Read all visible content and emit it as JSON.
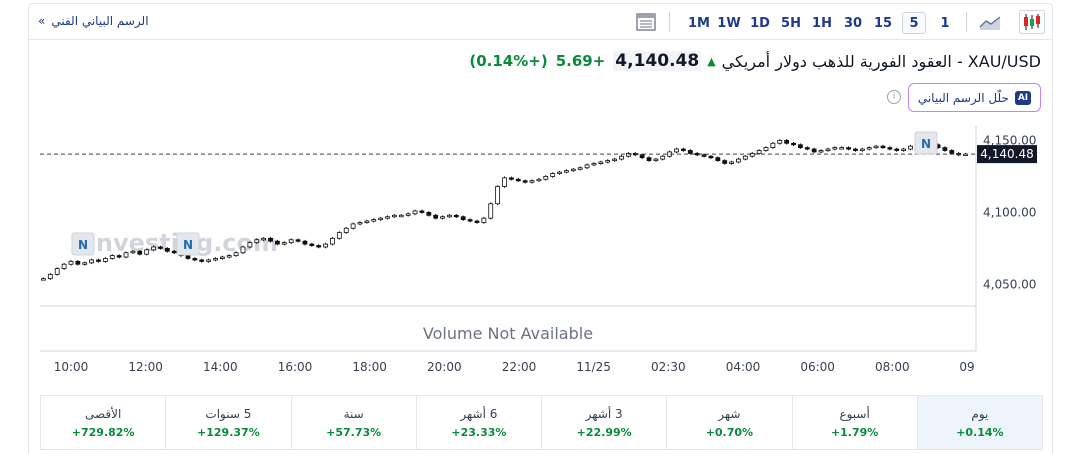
{
  "toolbar": {
    "technical_chart_link": "الرسم البياني الفني",
    "timeframes": [
      "1M",
      "1W",
      "1D",
      "5H",
      "1H",
      "30",
      "15",
      "5",
      "1"
    ],
    "active_timeframe": "5"
  },
  "instrument": {
    "title": "XAU/USD - العقود الفورية للذهب دولار أمريكي",
    "price": "4,140.48",
    "change": "+5.69",
    "change_pct": "(+0.14%)",
    "direction": "up"
  },
  "ai_button": {
    "label": "حلّل الرسم البياني",
    "badge": "AI"
  },
  "chart": {
    "watermark": "Investing.com",
    "volume_note": "Volume Not Available",
    "news_marker": "N",
    "current_price_label": "4,140.48"
  },
  "chart_data": {
    "type": "candlestick",
    "y_ticks": [
      "4,150.00",
      "4,100.00",
      "4,050.00"
    ],
    "y_tick_values": [
      4150,
      4100,
      4050
    ],
    "ylim": [
      4035,
      4160
    ],
    "x_ticks": [
      "10:00",
      "12:00",
      "14:00",
      "16:00",
      "18:00",
      "20:00",
      "22:00",
      "11/25",
      "02:30",
      "04:00",
      "06:00",
      "08:00",
      "09"
    ],
    "current_price": 4140.48,
    "close_series": [
      4054,
      4057,
      4061,
      4064,
      4066,
      4064,
      4065,
      4067,
      4066,
      4068,
      4070,
      4069,
      4072,
      4073,
      4071,
      4074,
      4076,
      4075,
      4073,
      4072,
      4070,
      4068,
      4067,
      4066,
      4067,
      4068,
      4069,
      4070,
      4072,
      4076,
      4079,
      4081,
      4082,
      4080,
      4078,
      4079,
      4081,
      4080,
      4078,
      4077,
      4076,
      4078,
      4082,
      4086,
      4089,
      4092,
      4093,
      4094,
      4095,
      4096,
      4097,
      4098,
      4098,
      4099,
      4101,
      4100,
      4098,
      4096,
      4097,
      4098,
      4097,
      4095,
      4094,
      4093,
      4096,
      4106,
      4118,
      4124,
      4123,
      4122,
      4121,
      4122,
      4123,
      4125,
      4127,
      4128,
      4129,
      4130,
      4131,
      4133,
      4134,
      4135,
      4136,
      4137,
      4139,
      4141,
      4140,
      4138,
      4136,
      4137,
      4139,
      4142,
      4144,
      4143,
      4141,
      4140,
      4139,
      4138,
      4136,
      4134,
      4135,
      4137,
      4139,
      4141,
      4143,
      4145,
      4148,
      4150,
      4148,
      4147,
      4145,
      4144,
      4142,
      4143,
      4144,
      4145,
      4145,
      4144,
      4143,
      4144,
      4145,
      4146,
      4145,
      4144,
      4143,
      4144,
      4146,
      4147,
      4148,
      4147,
      4145,
      4143,
      4141,
      4140,
      4140.48
    ]
  },
  "performance": [
    {
      "label": "يوم",
      "value": "+0.14%",
      "active": true
    },
    {
      "label": "أسبوع",
      "value": "+1.79%"
    },
    {
      "label": "شهر",
      "value": "+0.70%"
    },
    {
      "label": "3 أشهر",
      "value": "+22.99%"
    },
    {
      "label": "6 أشهر",
      "value": "+23.33%"
    },
    {
      "label": "سنة",
      "value": "+57.73%"
    },
    {
      "label": "5 سنوات",
      "value": "+129.37%"
    },
    {
      "label": "الأقصى",
      "value": "+729.82%"
    }
  ],
  "colors": {
    "up": "#0a8a3d",
    "down": "#111111",
    "accent": "#1e3a8a",
    "ai_border": "#c084fc"
  }
}
